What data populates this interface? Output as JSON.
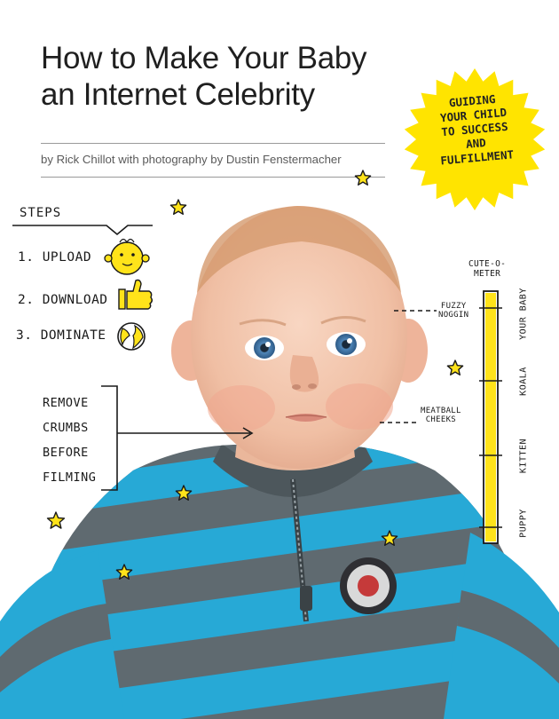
{
  "title": {
    "line1": "How to Make Your Baby",
    "line2": "an Internet Celebrity"
  },
  "byline": "by Rick Chillot with photography by Dustin Fenstermacher",
  "burst": {
    "lines": [
      "GUIDING",
      "YOUR CHILD",
      "TO SUCCESS",
      "AND",
      "FULFILLMENT"
    ],
    "color": "#ffe400"
  },
  "steps": {
    "heading": "STEPS",
    "items": [
      {
        "label": "1. UPLOAD",
        "icon": "baby-face-icon"
      },
      {
        "label": "2. DOWNLOAD",
        "icon": "thumbs-up-icon"
      },
      {
        "label": "3. DOMINATE",
        "icon": "globe-icon"
      }
    ]
  },
  "note": {
    "lines": [
      "REMOVE",
      "CRUMBS",
      "BEFORE",
      "FILMING"
    ]
  },
  "callouts": {
    "fuzzy": [
      "FUZZY",
      "NOGGIN"
    ],
    "meatball": [
      "MEATBALL",
      "CHEEKS"
    ]
  },
  "meter": {
    "title_line1": "CUTE-O-",
    "title_line2": "METER",
    "labels": [
      "YOUR BABY",
      "KOALA",
      "KITTEN",
      "PUPPY"
    ],
    "level": 1.0,
    "color": "#ffe31a"
  },
  "colors": {
    "star": "#ffe31a",
    "skin": "#f3c8ae",
    "stripe_blue": "#27a9d6",
    "stripe_gray": "#5f6a70"
  }
}
